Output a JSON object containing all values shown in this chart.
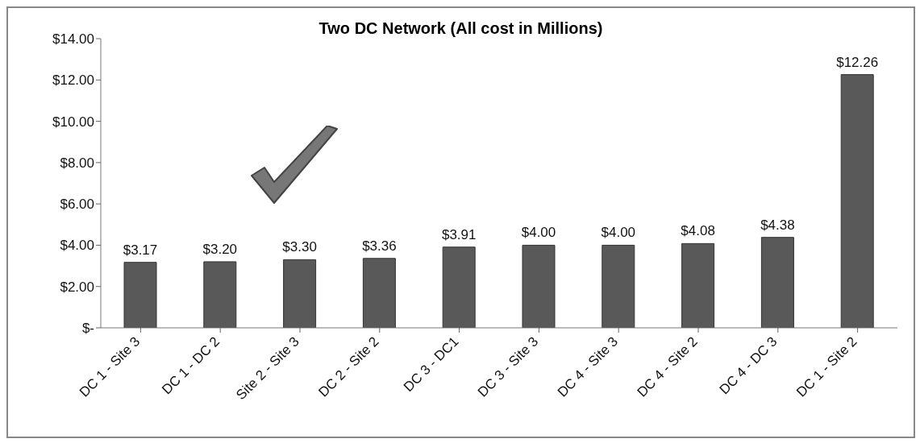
{
  "chart_data": {
    "type": "bar",
    "title": "Two DC Network (All cost in Millions)",
    "categories": [
      "DC 1 - Site 3",
      "DC 1 - DC 2",
      "Site 2 - Site 3",
      "DC 2 - Site 2",
      "DC 3 - DC1",
      "DC 3 - Site 3",
      "DC 4 - Site 3",
      "DC 4 - Site 2",
      "DC 4 - DC 3",
      "DC 1 - Site 2"
    ],
    "values": [
      3.17,
      3.2,
      3.3,
      3.36,
      3.91,
      4.0,
      4.0,
      4.08,
      4.38,
      12.26
    ],
    "value_labels": [
      "$3.17",
      "$3.20",
      "$3.30",
      "$3.36",
      "$3.91",
      "$4.00",
      "$4.00",
      "$4.08",
      "$4.38",
      "$12.26"
    ],
    "color": "#595959",
    "ylim": [
      0,
      14
    ],
    "yticks": [
      {
        "value": 0,
        "label": "$-"
      },
      {
        "value": 2,
        "label": "$2.00"
      },
      {
        "value": 4,
        "label": "$4.00"
      },
      {
        "value": 6,
        "label": "$6.00"
      },
      {
        "value": 8,
        "label": "$8.00"
      },
      {
        "value": 10,
        "label": "$10.00"
      },
      {
        "value": 12,
        "label": "$12.00"
      },
      {
        "value": 14,
        "label": "$14.00"
      }
    ],
    "grid": false,
    "legend": false
  }
}
